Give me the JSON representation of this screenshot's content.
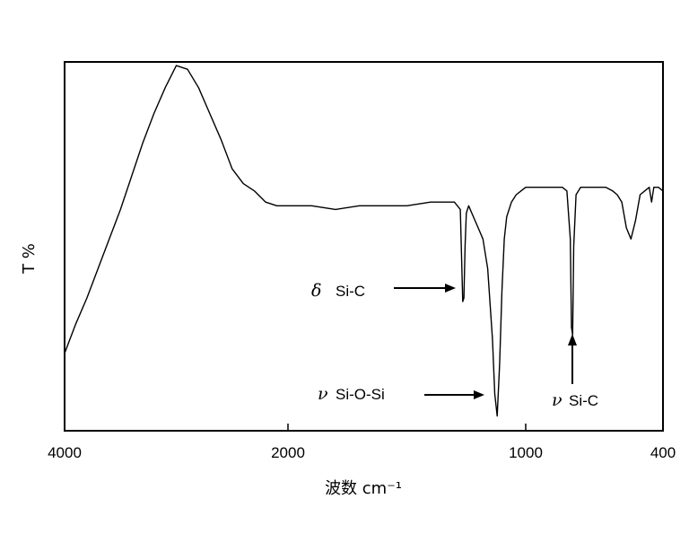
{
  "chart_data": {
    "type": "line",
    "title": "",
    "xlabel": "波数 cm⁻¹",
    "ylabel": "T %",
    "x_reversed": true,
    "xlim": [
      4000,
      400
    ],
    "ylim": [
      0,
      100
    ],
    "xticks": [
      4000,
      2000,
      1000,
      400
    ],
    "xtick_labels": [
      "4000",
      "2000",
      "1000",
      "400"
    ],
    "x_scale_note": "high-wavenumber half (4000-2000) compressed relative to low half",
    "grid": false,
    "legend": "none",
    "series": [
      {
        "x": [
          4000,
          3900,
          3800,
          3700,
          3600,
          3500,
          3400,
          3300,
          3200,
          3100,
          3000,
          2900,
          2800,
          2700,
          2600,
          2500,
          2400,
          2300,
          2200,
          2100,
          2000,
          1900,
          1800,
          1700,
          1600,
          1500,
          1400,
          1350,
          1300,
          1275,
          1270,
          1265,
          1260,
          1255,
          1250,
          1240,
          1220,
          1200,
          1180,
          1160,
          1140,
          1130,
          1120,
          1110,
          1100,
          1090,
          1080,
          1060,
          1040,
          1020,
          1000,
          950,
          900,
          860,
          840,
          820,
          805,
          800,
          795,
          790,
          780,
          760,
          700,
          650,
          620,
          600,
          580,
          560,
          540,
          520,
          500,
          480,
          460,
          450,
          440,
          420,
          400
        ],
        "y": [
          21,
          29,
          36,
          44,
          52,
          60,
          69,
          78,
          86,
          93,
          99,
          98,
          93,
          86,
          79,
          71,
          67,
          65,
          62,
          61,
          61,
          61,
          60,
          61,
          61,
          61,
          62,
          62,
          62,
          60,
          47,
          35,
          36,
          50,
          59,
          61,
          58,
          55,
          52,
          44,
          25,
          10,
          4,
          18,
          38,
          52,
          58,
          62,
          64,
          65,
          66,
          66,
          66,
          66,
          66,
          65,
          52,
          28,
          26,
          50,
          64,
          66,
          66,
          66,
          65,
          64,
          62,
          55,
          52,
          57,
          64,
          65,
          66,
          62,
          66,
          66,
          65
        ]
      }
    ],
    "annotations": [
      {
        "greek": "δ",
        "text": "Si-C",
        "points_to_x": 1260
      },
      {
        "greek": "ν",
        "text": "Si-O-Si",
        "points_to_x": 1110
      },
      {
        "greek": "ν",
        "text": "Si-C",
        "points_to_x": 800
      }
    ]
  }
}
